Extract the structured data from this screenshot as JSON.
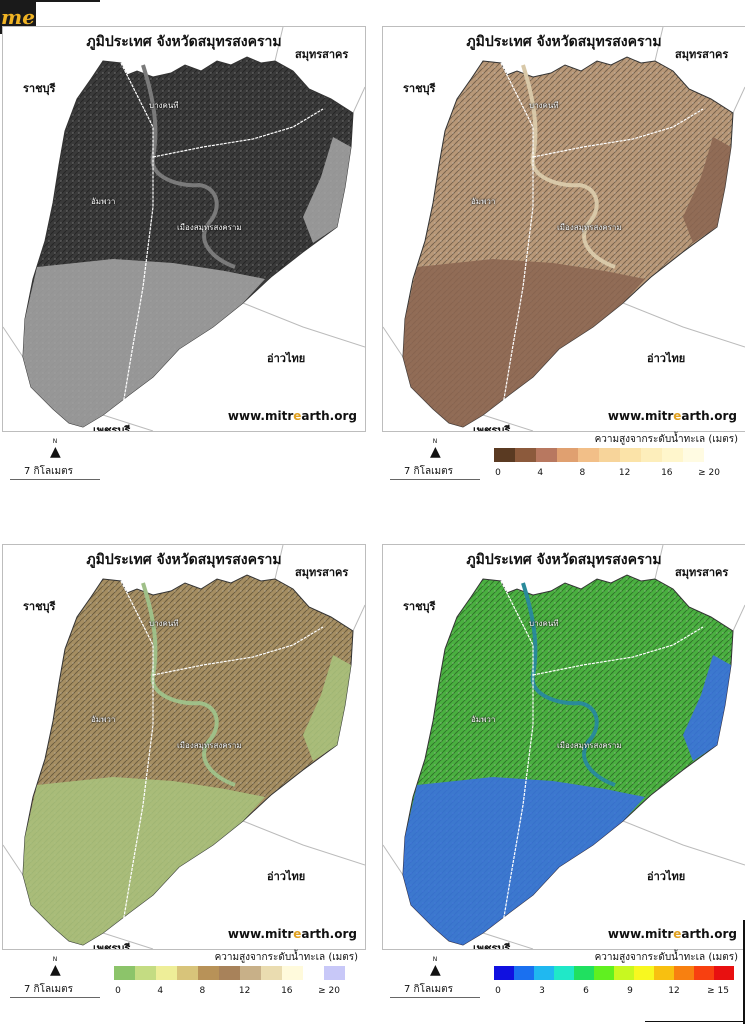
{
  "logo_text": "me",
  "url": {
    "pre": "www.",
    "highlight": "mitr",
    "mid": "e",
    "post": "arth.org"
  },
  "panels": [
    {
      "title": "ภูมิประเทศ จังหวัดสมุทรสงคราม",
      "labels": {
        "ne": "สมุทรสาคร",
        "w": "ราชบุรี",
        "se": "อ่าวไทย",
        "sw": "เพชรบุรี"
      },
      "districts": {
        "a": "บางคนที",
        "b": "อัมพวา",
        "c": "เมืองสมุทรสงคราม"
      },
      "fill": "#3a3a3a",
      "low": "#a8a8a8",
      "river": "#7a7a7a",
      "scale": "7 กิโลเมตร",
      "legend": null
    },
    {
      "title": "ภูมิประเทศ จังหวัดสมุทรสงคราม",
      "labels": {
        "ne": "สมุทรสาคร",
        "w": "ราชบุรี",
        "se": "อ่าวไทย",
        "sw": "เพชรบุรี"
      },
      "districts": {
        "a": "บางคนที",
        "b": "อัมพวา",
        "c": "เมืองสมุทรสงคราม"
      },
      "fill": "#b89878",
      "low": "#8a6450",
      "river": "#d8c8a8",
      "scale": "7 กิโลเมตร",
      "legend": {
        "title": "ความสูงจากระดับน้ำทะเล (เมตร)",
        "colors": [
          "#5a3a22",
          "#8c5a3c",
          "#b87860",
          "#e0a070",
          "#f2bf88",
          "#f7d49a",
          "#fbe3a8",
          "#fdeebb",
          "#fff6cc",
          "#fffbe2",
          "#ffffff"
        ],
        "ticks": [
          "0",
          "4",
          "8",
          "12",
          "16",
          "≥ 20"
        ]
      }
    },
    {
      "title": "ภูมิประเทศ จังหวัดสมุทรสงคราม",
      "labels": {
        "ne": "สมุทรสาคร",
        "w": "ราชบุรี",
        "se": "อ่าวไทย",
        "sw": "เพชรบุรี"
      },
      "districts": {
        "a": "บางคนที",
        "b": "อัมพวา",
        "c": "เมืองสมุทรสงคราม"
      },
      "fill": "#a58e62",
      "low": "#a9c47e",
      "river": "#9fbf88",
      "scale": "7 กิโลเมตร",
      "legend": {
        "title": "ความสูงจากระดับน้ำทะเล (เมตร)",
        "colors": [
          "#8cc46a",
          "#c4dc82",
          "#eeee98",
          "#d8c47a",
          "#b89258",
          "#a8825a",
          "#c8b088",
          "#eadcb0",
          "#fffadc",
          "#ffffff",
          "#c8c8f8"
        ],
        "ticks": [
          "0",
          "4",
          "8",
          "12",
          "16",
          "≥ 20"
        ]
      }
    },
    {
      "title": "ภูมิประเทศ จังหวัดสมุทรสงคราม",
      "labels": {
        "ne": "สมุทรสาคร",
        "w": "ราชบุรี",
        "se": "อ่าวไทย",
        "sw": "เพชรบุรี"
      },
      "districts": {
        "a": "บางคนที",
        "b": "อัมพวา",
        "c": "เมืองสมุทรสงคราม"
      },
      "fill": "#4ab040",
      "low": "#3a6ee8",
      "river": "#2a8a9a",
      "scale": "7 กิโลเมตร",
      "legend": {
        "title": "ความสูงจากระดับน้ำทะเล (เมตร)",
        "colors": [
          "#1010e0",
          "#1a70f0",
          "#20b8f0",
          "#20e8c8",
          "#20e060",
          "#60f020",
          "#c8f820",
          "#f8f820",
          "#f8c010",
          "#f88010",
          "#f84010",
          "#e81010"
        ],
        "ticks": [
          "0",
          "3",
          "6",
          "9",
          "12",
          "≥ 15"
        ]
      }
    }
  ]
}
